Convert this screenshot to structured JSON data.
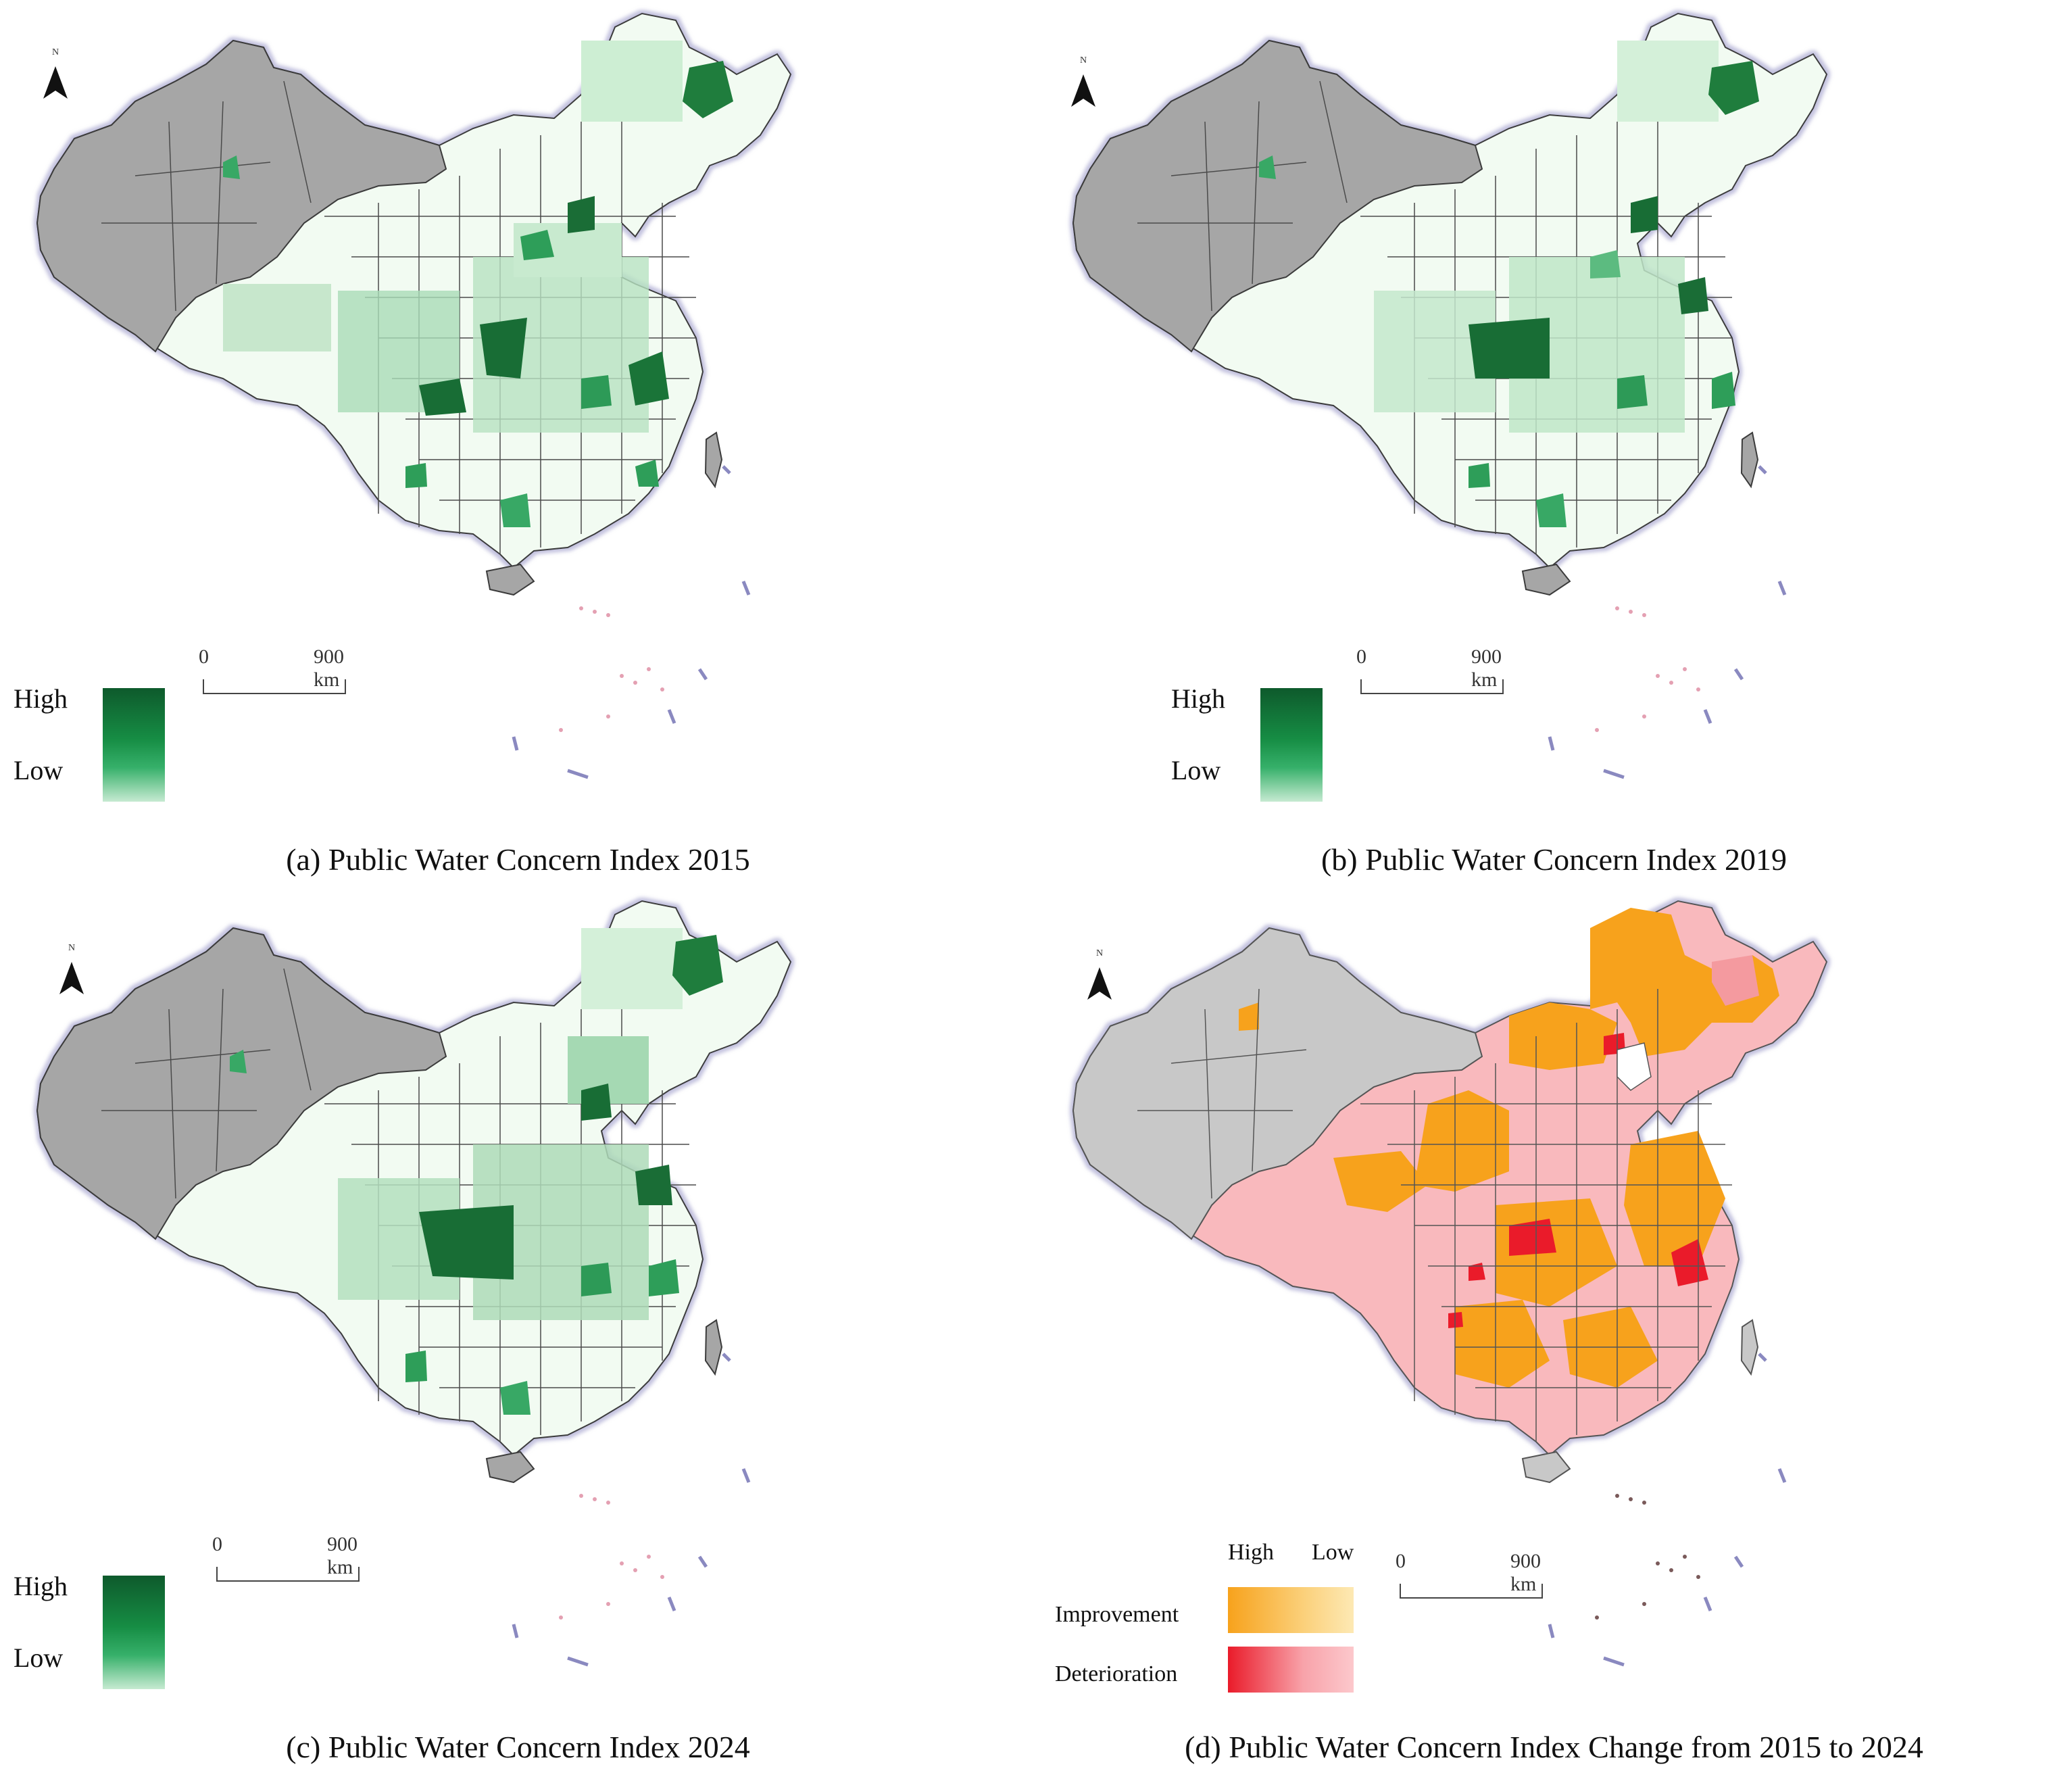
{
  "panels": [
    {
      "id": "a",
      "caption": "(a) Public Water Concern Index 2015",
      "north_label": "N",
      "scale": {
        "start": "0",
        "end": "900 km"
      },
      "legend": {
        "high": "High",
        "low": "Low"
      }
    },
    {
      "id": "b",
      "caption": "(b) Public Water Concern Index 2019",
      "north_label": "N",
      "scale": {
        "start": "0",
        "end": "900 km"
      },
      "legend": {
        "high": "High",
        "low": "Low"
      }
    },
    {
      "id": "c",
      "caption": "(c) Public Water Concern Index 2024",
      "north_label": "N",
      "scale": {
        "start": "0",
        "end": "900 km"
      },
      "legend": {
        "high": "High",
        "low": "Low"
      }
    },
    {
      "id": "d",
      "caption": "(d) Public Water Concern Index Change from 2015 to 2024",
      "north_label": "N",
      "scale": {
        "start": "0",
        "end": "900 km"
      },
      "legend": {
        "high": "High",
        "low": "Low",
        "improvement": "Improvement",
        "deterioration": "Deterioration"
      }
    }
  ],
  "colors": {
    "no_data": "#a6a6a6",
    "green_high": "#0e5a2c",
    "green_low": "#c6ead1",
    "green_base": "#f2fbf2",
    "improvement_high": "#f7a21c",
    "improvement_low": "#fde9b4",
    "deterioration_high": "#ea1b2a",
    "deterioration_low": "#fcc8cc",
    "d_base": "#f9b9bd"
  }
}
